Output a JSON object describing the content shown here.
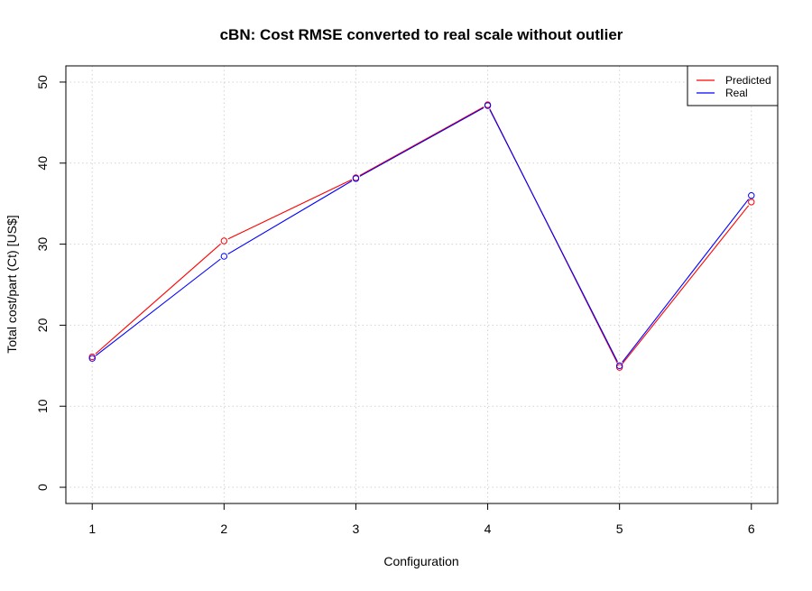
{
  "chart_data": {
    "type": "line",
    "title": "cBN: Cost RMSE converted to real scale without outlier",
    "xlabel": "Configuration",
    "ylabel": "Total cost/part (Ct) [US$]",
    "x": [
      1,
      2,
      3,
      4,
      5,
      6
    ],
    "x_ticks": [
      "1",
      "2",
      "3",
      "4",
      "5",
      "6"
    ],
    "y_ticks": [
      "0",
      "10",
      "20",
      "30",
      "40",
      "50"
    ],
    "xlim": [
      0.8,
      6.2
    ],
    "ylim": [
      -2,
      52
    ],
    "grid": true,
    "legend_position": "top-right",
    "series": [
      {
        "name": "Predicted",
        "color": "#ff0000",
        "values": [
          16.1,
          30.4,
          38.2,
          47.2,
          14.8,
          35.2
        ]
      },
      {
        "name": "Real",
        "color": "#0000ff",
        "values": [
          15.9,
          28.5,
          38.1,
          47.1,
          15.0,
          36.0
        ]
      }
    ]
  }
}
